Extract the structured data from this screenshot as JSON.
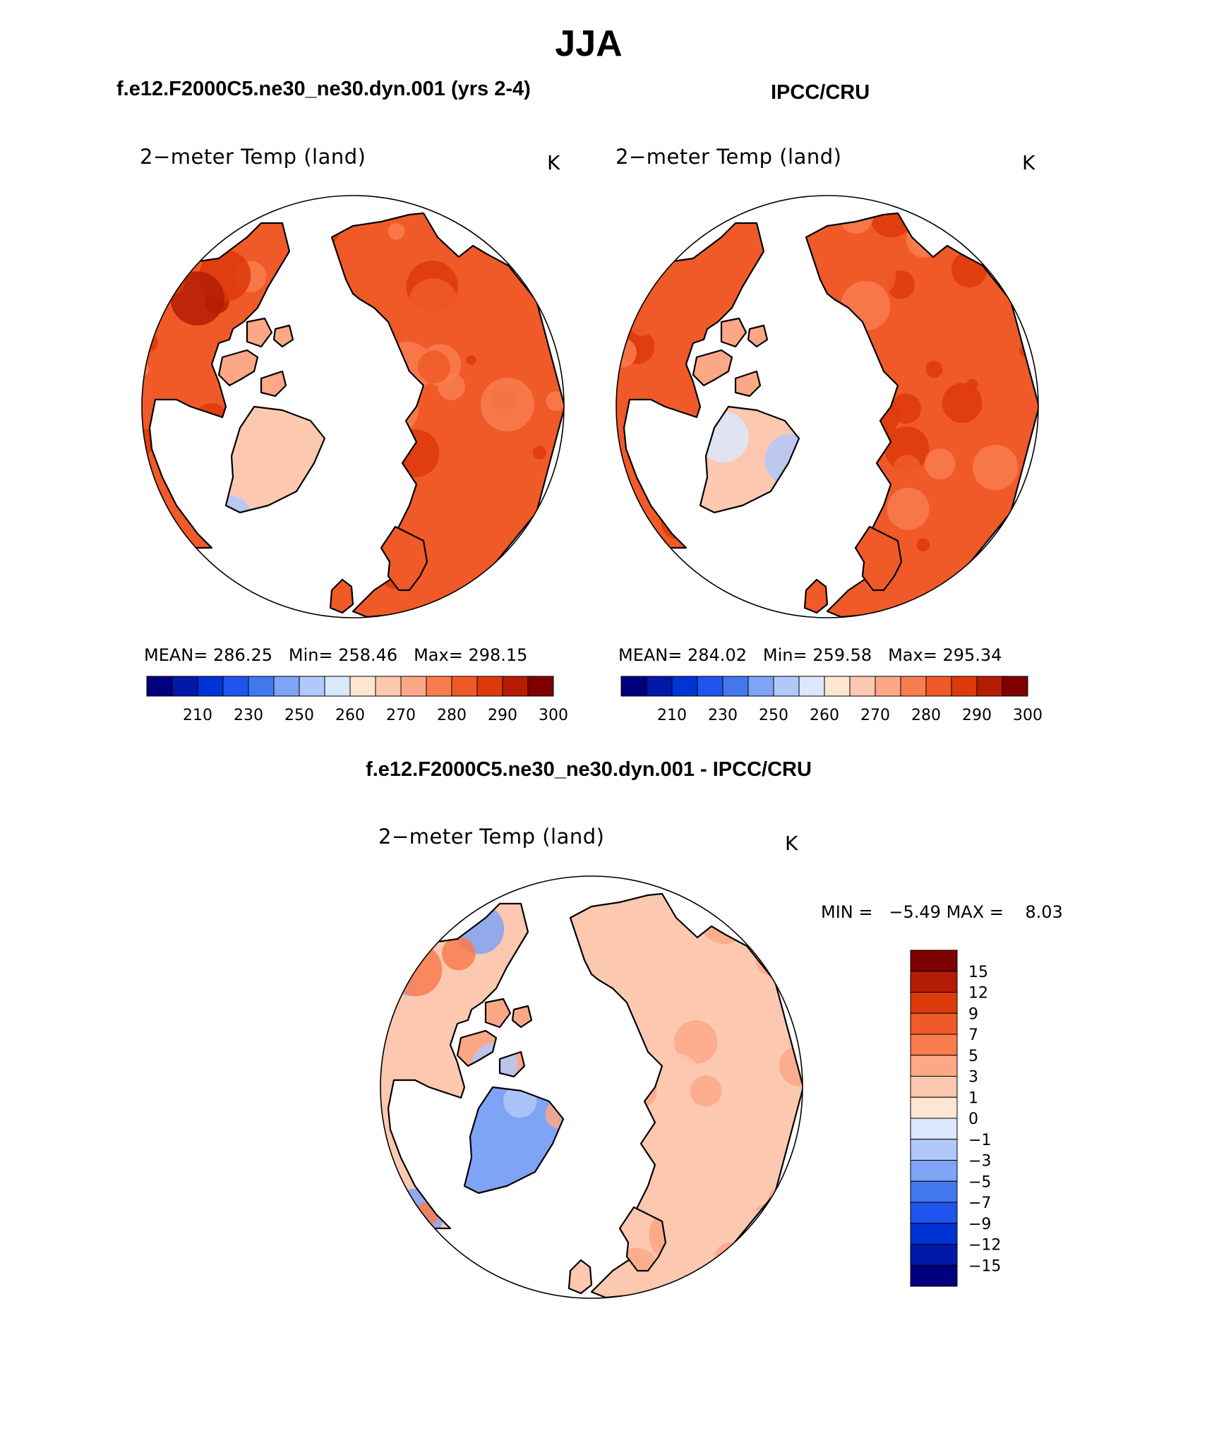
{
  "figure": {
    "title": "JJA",
    "left_subtitle": "f.e12.F2000C5.ne30_ne30.dyn.001 (yrs 2-4)",
    "right_subtitle": "IPCC/CRU",
    "diff_subtitle": "f.e12.F2000C5.ne30_ne30.dyn.001 - IPCC/CRU"
  },
  "chart_data": [
    {
      "type": "heatmap",
      "panel": "model",
      "projection": "north polar stereographic",
      "title": "2−meter Temp (land)",
      "units": "K",
      "mean_label": "MEAN=",
      "mean": "286.25",
      "min_label": "Min=",
      "min": "258.46",
      "max_label": "Max=",
      "max": "298.15",
      "colorbar": {
        "orientation": "horizontal",
        "tick_labels": [
          "210",
          "230",
          "250",
          "260",
          "270",
          "280",
          "290",
          "300"
        ],
        "colors": [
          "#00007f",
          "#0019a8",
          "#0033d4",
          "#1f55ee",
          "#4277ee",
          "#7fa3f5",
          "#b1c8fa",
          "#dbe7fd",
          "#fee6d2",
          "#fdc8b0",
          "#fca887",
          "#f97c4f",
          "#f05a28",
          "#dd3a0b",
          "#b51c04",
          "#7f0000"
        ]
      }
    },
    {
      "type": "heatmap",
      "panel": "observations",
      "projection": "north polar stereographic",
      "title": "2−meter Temp (land)",
      "units": "K",
      "mean_label": "MEAN=",
      "mean": "284.02",
      "min_label": "Min=",
      "min": "259.58",
      "max_label": "Max=",
      "max": "295.34",
      "colorbar": {
        "orientation": "horizontal",
        "tick_labels": [
          "210",
          "230",
          "250",
          "260",
          "270",
          "280",
          "290",
          "300"
        ],
        "colors": [
          "#00007f",
          "#0019a8",
          "#0033d4",
          "#1f55ee",
          "#4277ee",
          "#7fa3f5",
          "#b1c8fa",
          "#dbe7fd",
          "#fee6d2",
          "#fdc8b0",
          "#fca887",
          "#f97c4f",
          "#f05a28",
          "#dd3a0b",
          "#b51c04",
          "#7f0000"
        ]
      }
    },
    {
      "type": "heatmap",
      "panel": "difference",
      "projection": "north polar stereographic",
      "title": "2−meter Temp (land)",
      "units": "K",
      "min_label": "MIN =",
      "min": "−5.49",
      "max_label": "MAX =",
      "max": "8.03",
      "colorbar": {
        "orientation": "vertical",
        "tick_labels": [
          "15",
          "12",
          "9",
          "7",
          "5",
          "3",
          "1",
          "0",
          "−1",
          "−3",
          "−5",
          "−7",
          "−9",
          "−12",
          "−15"
        ],
        "colors": [
          "#7f0000",
          "#b51c04",
          "#dd3a0b",
          "#f05a28",
          "#f97c4f",
          "#fca887",
          "#fdc8b0",
          "#fee6d2",
          "#dbe7fd",
          "#b1c8fa",
          "#7fa3f5",
          "#4277ee",
          "#1f55ee",
          "#0033d4",
          "#0019a8",
          "#00007f"
        ]
      }
    }
  ]
}
